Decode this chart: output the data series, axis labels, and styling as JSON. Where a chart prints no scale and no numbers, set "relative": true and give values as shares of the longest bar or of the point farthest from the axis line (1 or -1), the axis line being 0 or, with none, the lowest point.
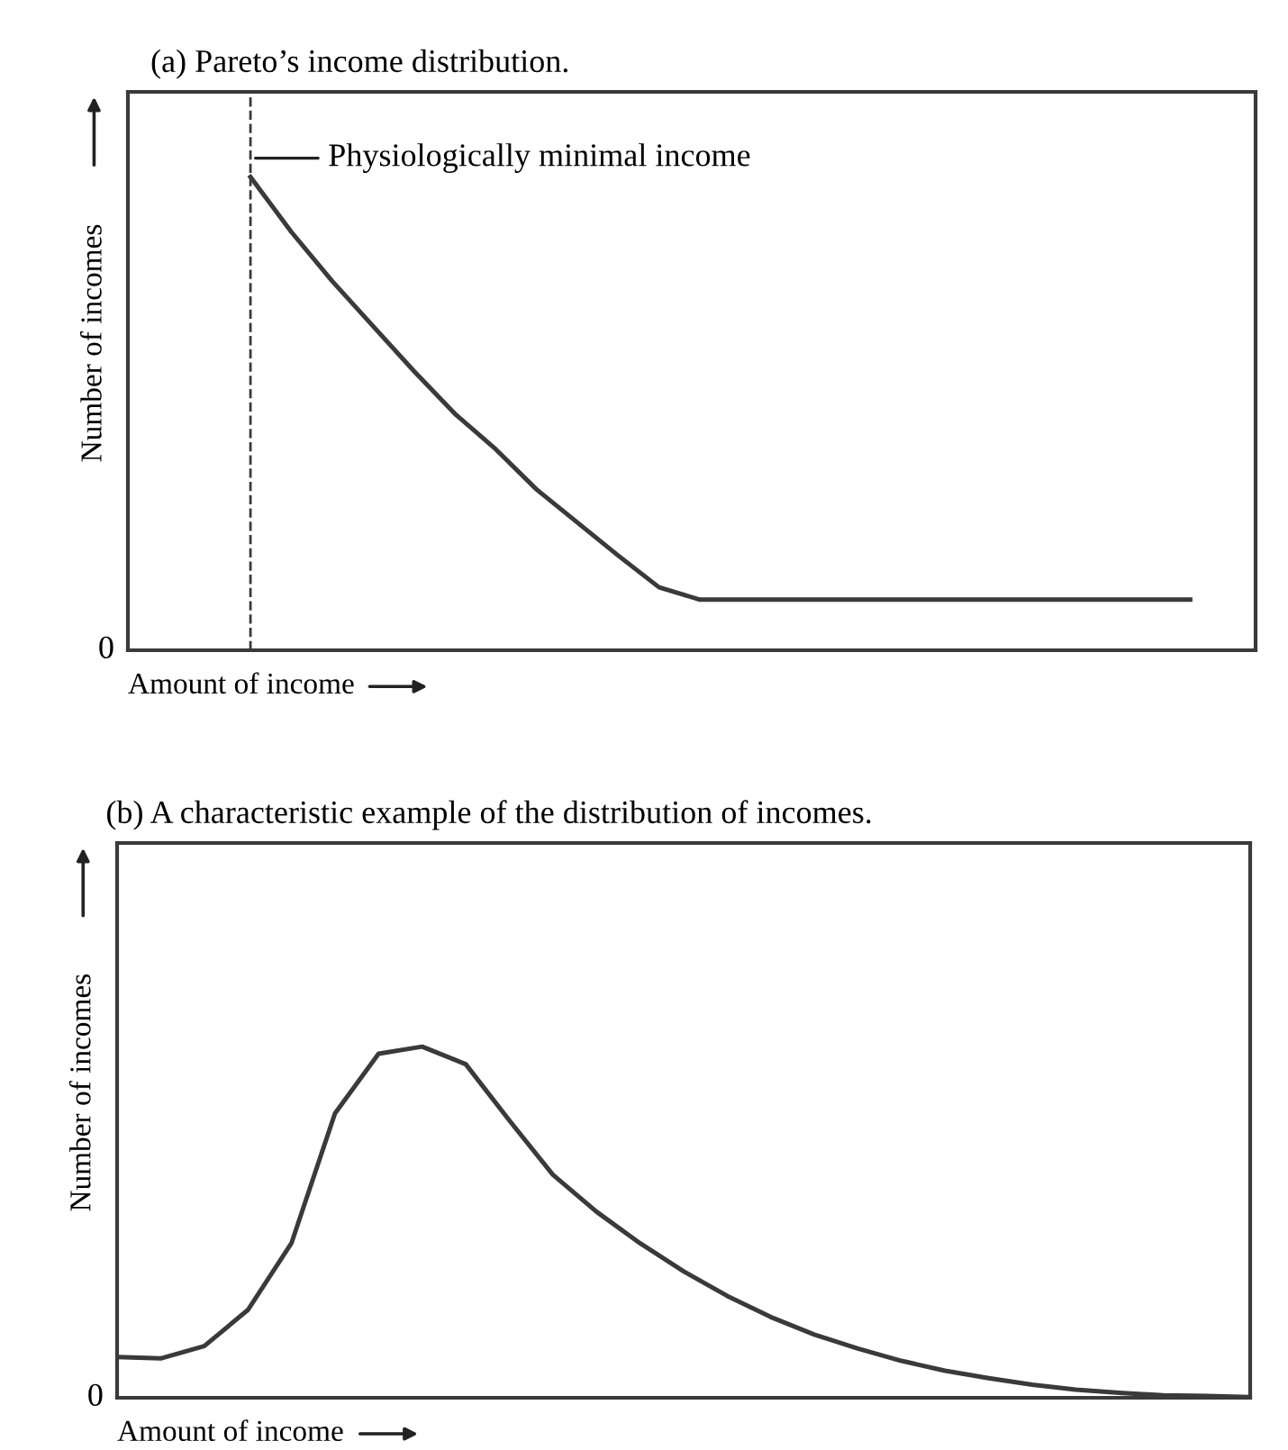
{
  "chart_data": [
    {
      "type": "line",
      "title": "(a) Pareto’s income distribution.",
      "xlabel": "Amount of income",
      "ylabel": "Number of incomes",
      "relative": true,
      "legend": false,
      "marker": "none",
      "line_style": "solid",
      "categories": [
        null,
        null,
        null,
        null,
        null,
        null,
        null,
        null,
        null,
        null,
        null,
        null,
        null,
        null,
        null,
        null,
        null,
        null,
        null,
        null,
        null,
        null,
        null,
        null,
        null,
        null,
        null
      ],
      "series": [
        {
          "color": "#3a3a3a",
          "values": [
            null,
            null,
            null,
            1.0,
            0.884,
            0.78,
            0.685,
            0.59,
            0.5,
            0.425,
            0.34,
            0.27,
            0.2,
            0.133,
            0.107,
            0.107,
            0.107,
            0.107,
            0.107,
            0.107,
            0.107,
            0.107,
            0.107,
            0.107,
            0.107,
            0.107,
            0.107
          ]
        }
      ],
      "annotations": [
        "0",
        "Physiologically minimal income"
      ]
    },
    {
      "type": "line",
      "title": "(b) A characteristic example of the distribution of incomes.",
      "xlabel": "Amount of income",
      "ylabel": "Number of incomes",
      "relative": true,
      "legend": false,
      "marker": "none",
      "line_style": "solid",
      "categories": [
        null,
        null,
        null,
        null,
        null,
        null,
        null,
        null,
        null,
        null,
        null,
        null,
        null,
        null,
        null,
        null,
        null,
        null,
        null,
        null,
        null,
        null,
        null,
        null,
        null,
        null,
        null
      ],
      "series": [
        {
          "color": "#3a3a3a",
          "values": [
            0.116,
            0.112,
            0.147,
            0.25,
            0.44,
            0.81,
            0.98,
            1.0,
            0.95,
            0.79,
            0.635,
            0.53,
            0.44,
            0.36,
            0.29,
            0.23,
            0.18,
            0.14,
            0.105,
            0.077,
            0.056,
            0.037,
            0.023,
            0.014,
            0.007,
            0.005,
            0.002
          ]
        }
      ],
      "annotations": [
        "0"
      ]
    }
  ]
}
